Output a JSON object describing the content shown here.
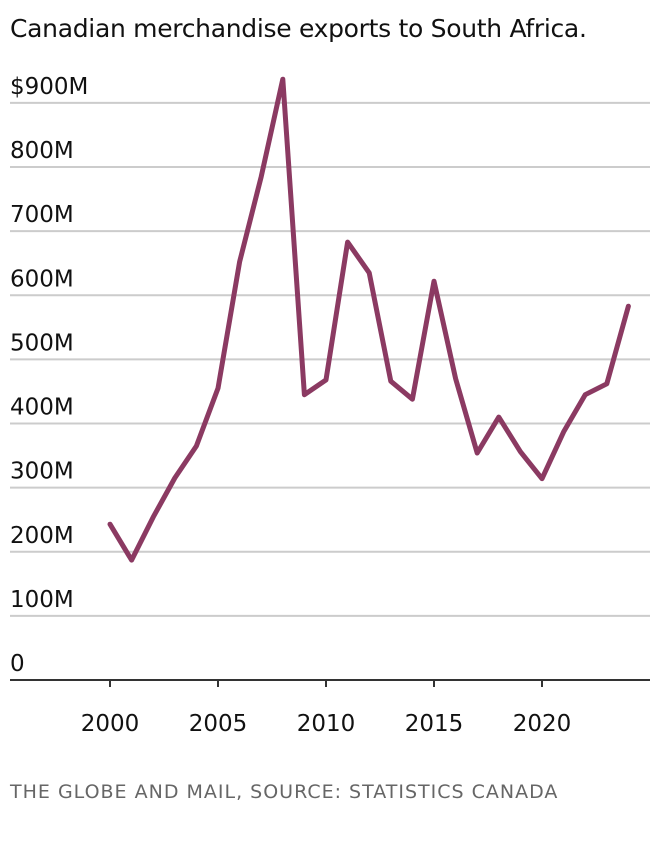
{
  "chart_data": {
    "type": "line",
    "title": "Canadian merchandise exports to South Africa.",
    "xlabel": "",
    "ylabel": "",
    "xlim": [
      1995.5,
      2025
    ],
    "ylim": [
      0,
      900
    ],
    "grid": true,
    "y_ticks": [
      0,
      100,
      200,
      300,
      400,
      500,
      600,
      700,
      800,
      900
    ],
    "y_tick_labels": [
      "0",
      "100M",
      "200M",
      "300M",
      "400M",
      "500M",
      "600M",
      "700M",
      "800M",
      "$900M"
    ],
    "x_ticks": [
      2000,
      2005,
      2010,
      2015,
      2020
    ],
    "x_tick_labels": [
      "2000",
      "2005",
      "2010",
      "2015",
      "2020"
    ],
    "line_color": "#8b3a62",
    "x": [
      2000,
      2001,
      2002,
      2003,
      2004,
      2005,
      2006,
      2007,
      2008,
      2009,
      2010,
      2011,
      2012,
      2013,
      2014,
      2015,
      2016,
      2017,
      2018,
      2019,
      2020,
      2021,
      2022,
      2023,
      2024
    ],
    "values": [
      243,
      187,
      254,
      315,
      365,
      455,
      652,
      785,
      937,
      445,
      468,
      683,
      635,
      466,
      438,
      622,
      470,
      354,
      410,
      356,
      314,
      387,
      445,
      462,
      583
    ]
  },
  "source": "THE GLOBE AND MAIL, SOURCE: STATISTICS CANADA"
}
